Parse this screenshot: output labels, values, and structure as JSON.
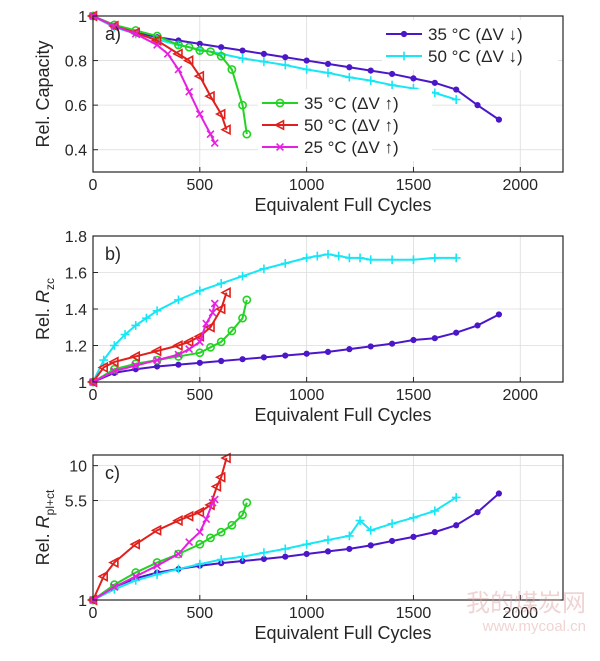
{
  "colors": {
    "blue": "#4b17c9",
    "cyan": "#16e6f5",
    "green": "#22d322",
    "red": "#e0201c",
    "magenta": "#e61fe0"
  },
  "watermark": {
    "text_cn": "我的煤炭网",
    "url": "www.mycoal.cn"
  },
  "chart_data": [
    {
      "type": "line",
      "panel_label": "a)",
      "xlabel": "Equivalent Full Cycles",
      "ylabel": "Rel. Capacity",
      "xlim": [
        0,
        2200
      ],
      "ylim": [
        0.3,
        1.0
      ],
      "xticks": [
        0,
        500,
        1000,
        1500,
        2000
      ],
      "yticks": [
        0.4,
        0.6,
        0.8,
        1.0
      ],
      "ytick_labels": [
        "0.4",
        "0.6",
        "0.8",
        "1"
      ],
      "grid": true,
      "legends": [
        {
          "position": "top-right",
          "entries": [
            "35 °C (ΔV ↓)",
            "50 °C (ΔV ↓)"
          ]
        },
        {
          "position": "center",
          "entries": [
            "35 °C (ΔV ↑)",
            "50 °C (ΔV ↑)",
            "25 °C (ΔV ↑)"
          ]
        }
      ],
      "series": [
        {
          "name": "35 °C (ΔV ↓)",
          "color": "blue",
          "marker": "dot",
          "x": [
            0,
            100,
            200,
            300,
            400,
            500,
            600,
            700,
            800,
            900,
            1000,
            1100,
            1200,
            1300,
            1400,
            1500,
            1600,
            1700,
            1800,
            1900
          ],
          "y": [
            1.0,
            0.95,
            0.925,
            0.905,
            0.89,
            0.875,
            0.86,
            0.845,
            0.83,
            0.815,
            0.8,
            0.785,
            0.77,
            0.755,
            0.74,
            0.72,
            0.7,
            0.67,
            0.6,
            0.535
          ]
        },
        {
          "name": "50 °C (ΔV ↓)",
          "color": "cyan",
          "marker": "plus",
          "x": [
            0,
            100,
            200,
            300,
            400,
            500,
            600,
            700,
            800,
            900,
            1000,
            1100,
            1200,
            1300,
            1400,
            1500,
            1600,
            1700
          ],
          "y": [
            1.0,
            0.95,
            0.92,
            0.895,
            0.87,
            0.85,
            0.83,
            0.81,
            0.795,
            0.78,
            0.76,
            0.745,
            0.725,
            0.71,
            0.69,
            0.675,
            0.655,
            0.625
          ]
        },
        {
          "name": "35 °C (ΔV ↑)",
          "color": "green",
          "marker": "circle",
          "x": [
            0,
            100,
            200,
            300,
            400,
            450,
            500,
            550,
            600,
            650,
            700,
            720
          ],
          "y": [
            1.0,
            0.96,
            0.935,
            0.91,
            0.87,
            0.86,
            0.845,
            0.84,
            0.82,
            0.76,
            0.6,
            0.47
          ]
        },
        {
          "name": "50 °C (ΔV ↑)",
          "color": "red",
          "marker": "triangle",
          "x": [
            0,
            100,
            200,
            300,
            400,
            450,
            500,
            550,
            600,
            625
          ],
          "y": [
            1.0,
            0.955,
            0.925,
            0.89,
            0.83,
            0.8,
            0.73,
            0.64,
            0.56,
            0.49
          ]
        },
        {
          "name": "25 °C (ΔV ↑)",
          "color": "magenta",
          "marker": "x",
          "x": [
            0,
            100,
            200,
            300,
            350,
            400,
            450,
            500,
            550,
            570
          ],
          "y": [
            1.0,
            0.955,
            0.92,
            0.87,
            0.83,
            0.76,
            0.66,
            0.56,
            0.47,
            0.43
          ]
        }
      ]
    },
    {
      "type": "line",
      "panel_label": "b)",
      "xlabel": "Equivalent Full Cycles",
      "ylabel_parts": [
        "Rel. ",
        "R",
        "zc"
      ],
      "xlim": [
        0,
        2200
      ],
      "ylim": [
        1.0,
        1.8
      ],
      "xticks": [
        0,
        500,
        1000,
        1500,
        2000
      ],
      "yticks": [
        1.0,
        1.2,
        1.4,
        1.6,
        1.8
      ],
      "ytick_labels": [
        "1",
        "1.2",
        "1.4",
        "1.6",
        "1.8"
      ],
      "grid": true,
      "series": [
        {
          "name": "35 °C (ΔV ↓)",
          "color": "blue",
          "marker": "dot",
          "x": [
            0,
            100,
            200,
            300,
            400,
            500,
            600,
            700,
            800,
            900,
            1000,
            1100,
            1200,
            1300,
            1400,
            1500,
            1600,
            1700,
            1800,
            1900
          ],
          "y": [
            1.0,
            1.05,
            1.07,
            1.085,
            1.095,
            1.105,
            1.115,
            1.125,
            1.135,
            1.145,
            1.155,
            1.165,
            1.18,
            1.195,
            1.21,
            1.23,
            1.24,
            1.27,
            1.31,
            1.37
          ]
        },
        {
          "name": "50 °C (ΔV ↓)",
          "color": "cyan",
          "marker": "plus",
          "x": [
            0,
            50,
            100,
            150,
            200,
            250,
            300,
            400,
            500,
            600,
            700,
            800,
            900,
            1000,
            1050,
            1100,
            1150,
            1200,
            1250,
            1300,
            1400,
            1500,
            1600,
            1700
          ],
          "y": [
            1.0,
            1.12,
            1.2,
            1.26,
            1.31,
            1.35,
            1.39,
            1.45,
            1.5,
            1.54,
            1.58,
            1.62,
            1.65,
            1.68,
            1.69,
            1.7,
            1.69,
            1.68,
            1.68,
            1.67,
            1.67,
            1.67,
            1.68,
            1.68
          ]
        },
        {
          "name": "35 °C (ΔV ↑)",
          "color": "green",
          "marker": "circle",
          "x": [
            0,
            100,
            200,
            300,
            400,
            500,
            550,
            600,
            650,
            700,
            720
          ],
          "y": [
            1.0,
            1.07,
            1.1,
            1.12,
            1.14,
            1.16,
            1.19,
            1.22,
            1.28,
            1.35,
            1.45
          ]
        },
        {
          "name": "50 °C (ΔV ↑)",
          "color": "red",
          "marker": "triangle",
          "x": [
            0,
            50,
            100,
            200,
            300,
            400,
            450,
            500,
            550,
            600,
            625
          ],
          "y": [
            1.0,
            1.08,
            1.11,
            1.14,
            1.17,
            1.2,
            1.22,
            1.25,
            1.3,
            1.4,
            1.49
          ]
        },
        {
          "name": "25 °C (ΔV ↑)",
          "color": "magenta",
          "marker": "x",
          "x": [
            0,
            100,
            200,
            300,
            400,
            450,
            500,
            530,
            560,
            570
          ],
          "y": [
            1.0,
            1.06,
            1.09,
            1.12,
            1.15,
            1.18,
            1.22,
            1.32,
            1.38,
            1.43
          ]
        }
      ]
    },
    {
      "type": "line",
      "panel_label": "c)",
      "xlabel": "Equivalent Full Cycles",
      "ylabel_parts": [
        "Rel. ",
        "R",
        "pl+ct"
      ],
      "xlim": [
        0,
        2200
      ],
      "ylim": [
        1,
        12
      ],
      "yscale": "log",
      "xticks": [
        0,
        500,
        1000,
        1500,
        2000
      ],
      "yticks": [
        1,
        5.5,
        10
      ],
      "ytick_labels": [
        "1",
        "5.5",
        "10"
      ],
      "grid": true,
      "series": [
        {
          "name": "35 °C (ΔV ↓)",
          "color": "blue",
          "marker": "dot",
          "x": [
            0,
            100,
            200,
            300,
            400,
            500,
            600,
            700,
            800,
            900,
            1000,
            1100,
            1200,
            1300,
            1400,
            1500,
            1600,
            1700,
            1800,
            1900
          ],
          "y": [
            1.0,
            1.25,
            1.45,
            1.6,
            1.7,
            1.8,
            1.88,
            1.95,
            2.02,
            2.1,
            2.2,
            2.3,
            2.4,
            2.55,
            2.75,
            2.95,
            3.2,
            3.6,
            4.5,
            6.2
          ]
        },
        {
          "name": "50 °C (ΔV ↓)",
          "color": "cyan",
          "marker": "plus",
          "x": [
            0,
            100,
            200,
            300,
            400,
            500,
            600,
            700,
            800,
            900,
            1000,
            1100,
            1200,
            1250,
            1300,
            1400,
            1500,
            1600,
            1700
          ],
          "y": [
            1.0,
            1.2,
            1.4,
            1.55,
            1.7,
            1.85,
            2.0,
            2.1,
            2.25,
            2.4,
            2.6,
            2.8,
            3.0,
            3.9,
            3.3,
            3.7,
            4.1,
            4.6,
            5.8
          ]
        },
        {
          "name": "35 °C (ΔV ↑)",
          "color": "green",
          "marker": "circle",
          "x": [
            0,
            100,
            200,
            300,
            400,
            500,
            550,
            600,
            650,
            700,
            720
          ],
          "y": [
            1.0,
            1.3,
            1.6,
            1.9,
            2.2,
            2.6,
            2.9,
            3.2,
            3.6,
            4.3,
            5.3
          ]
        },
        {
          "name": "50 °C (ΔV ↑)",
          "color": "red",
          "marker": "triangle",
          "x": [
            0,
            50,
            100,
            200,
            300,
            400,
            450,
            500,
            550,
            580,
            600,
            625
          ],
          "y": [
            1.0,
            1.5,
            1.9,
            2.6,
            3.3,
            3.9,
            4.2,
            4.5,
            5.1,
            7.0,
            8.2,
            11.4
          ]
        },
        {
          "name": "25 °C (ΔV ↑)",
          "color": "magenta",
          "marker": "x",
          "x": [
            0,
            100,
            200,
            300,
            400,
            450,
            500,
            530,
            560,
            570
          ],
          "y": [
            1.0,
            1.25,
            1.5,
            1.8,
            2.2,
            2.7,
            3.2,
            4.0,
            5.3,
            5.6
          ]
        }
      ]
    }
  ]
}
